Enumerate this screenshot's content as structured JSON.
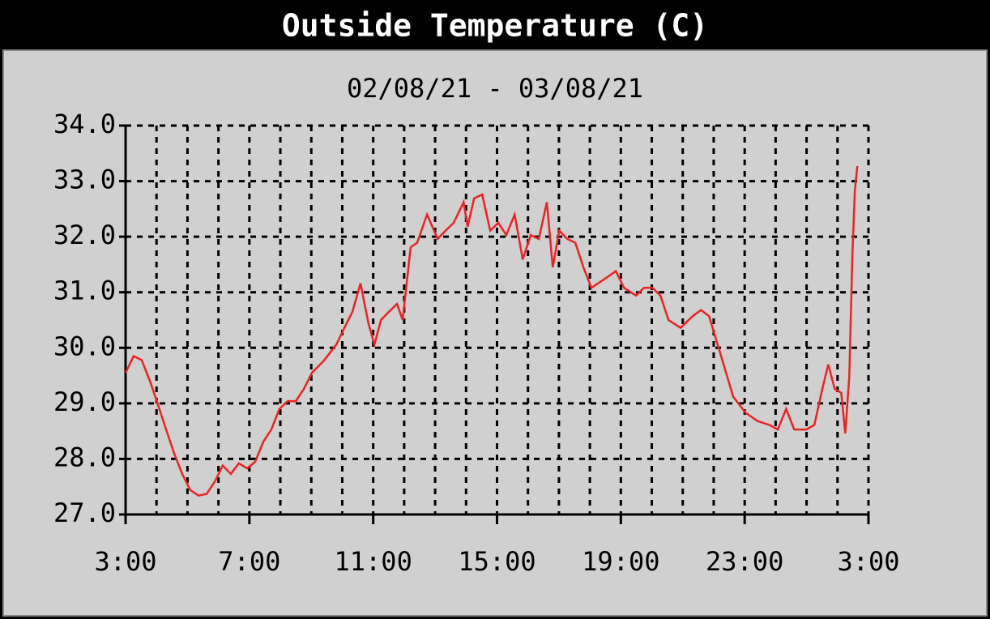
{
  "chart_data": {
    "type": "line",
    "title": "Outside Temperature (C)",
    "subtitle": "02/08/21 - 03/08/21",
    "x": [
      0,
      0.26,
      0.52,
      0.79,
      1.05,
      1.31,
      1.57,
      1.83,
      2.09,
      2.36,
      2.62,
      2.88,
      3.14,
      3.4,
      3.66,
      3.93,
      4.19,
      4.45,
      4.71,
      4.97,
      5.24,
      5.5,
      5.76,
      6.02,
      6.41,
      6.81,
      7.07,
      7.33,
      7.59,
      7.85,
      8.04,
      8.25,
      8.51,
      8.77,
      8.95,
      9.21,
      9.42,
      9.74,
      10.08,
      10.34,
      10.6,
      10.92,
      11.05,
      11.26,
      11.52,
      11.78,
      12.04,
      12.3,
      12.57,
      12.83,
      13.09,
      13.35,
      13.61,
      13.8,
      14.01,
      14.27,
      14.53,
      14.79,
      15.05,
      15.45,
      15.84,
      16.1,
      16.49,
      16.75,
      17.02,
      17.28,
      17.54,
      17.93,
      18.32,
      18.59,
      18.85,
      19.24,
      19.63,
      20.03,
      20.42,
      20.81,
      21.07,
      21.34,
      21.6,
      21.99,
      22.25,
      22.51,
      22.7,
      22.91,
      23.12,
      23.25,
      23.38,
      23.48,
      23.56,
      23.64
    ],
    "series": [
      {
        "name": "Outside Temperature",
        "color": "#ee2222",
        "values": [
          29.55,
          29.85,
          29.78,
          29.4,
          28.97,
          28.53,
          28.1,
          27.73,
          27.44,
          27.34,
          27.37,
          27.59,
          27.88,
          27.73,
          27.92,
          27.83,
          27.95,
          28.31,
          28.53,
          28.9,
          29.04,
          29.04,
          29.26,
          29.55,
          29.77,
          30.06,
          30.36,
          30.65,
          31.16,
          30.43,
          30.06,
          30.5,
          30.65,
          30.79,
          30.5,
          31.81,
          31.89,
          32.4,
          31.96,
          32.11,
          32.25,
          32.62,
          32.18,
          32.69,
          32.76,
          32.11,
          32.25,
          32.03,
          32.4,
          31.59,
          32.03,
          31.96,
          32.62,
          31.45,
          32.11,
          31.96,
          31.89,
          31.45,
          31.08,
          31.23,
          31.38,
          31.08,
          30.94,
          31.08,
          31.08,
          30.94,
          30.5,
          30.36,
          30.57,
          30.68,
          30.57,
          29.85,
          29.12,
          28.83,
          28.68,
          28.61,
          28.53,
          28.9,
          28.53,
          28.53,
          28.61,
          29.26,
          29.7,
          29.26,
          29.19,
          28.46,
          29.48,
          31.67,
          32.83,
          33.27
        ]
      }
    ],
    "xlim": [
      0,
      24
    ],
    "xticks": [
      {
        "value": 0,
        "label": "3:00"
      },
      {
        "value": 4,
        "label": "7:00"
      },
      {
        "value": 8,
        "label": "11:00"
      },
      {
        "value": 12,
        "label": "15:00"
      },
      {
        "value": 16,
        "label": "19:00"
      },
      {
        "value": 20,
        "label": "23:00"
      },
      {
        "value": 24,
        "label": "3:00"
      }
    ],
    "xminorticks": [
      1,
      2,
      3,
      5,
      6,
      7,
      9,
      10,
      11,
      13,
      14,
      15,
      17,
      18,
      19,
      21,
      22,
      23
    ],
    "ylim": [
      27,
      34
    ],
    "yticks": [
      {
        "value": 27,
        "label": "27.0"
      },
      {
        "value": 28,
        "label": "28.0"
      },
      {
        "value": 29,
        "label": "29.0"
      },
      {
        "value": 30,
        "label": "30.0"
      },
      {
        "value": 31,
        "label": "31.0"
      },
      {
        "value": 32,
        "label": "32.0"
      },
      {
        "value": 33,
        "label": "33.0"
      },
      {
        "value": 34,
        "label": "34.0"
      }
    ],
    "grid": true
  }
}
